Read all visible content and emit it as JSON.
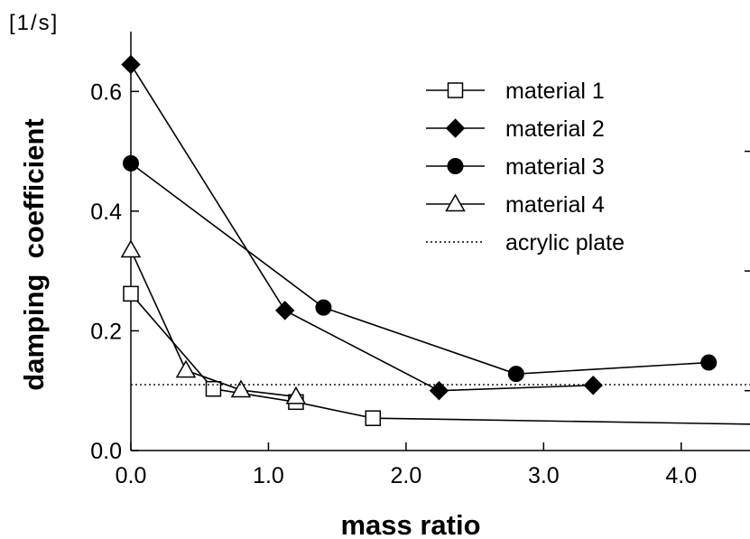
{
  "chart_data": {
    "type": "line",
    "title": "",
    "xlabel": "mass ratio",
    "ylabel": "damping  coefficient",
    "yunit": "[1/s]",
    "xlim": [
      0.0,
      4.5
    ],
    "ylim": [
      0.0,
      0.7
    ],
    "xticks": [
      0.0,
      1.0,
      2.0,
      3.0,
      4.0
    ],
    "xtick_labels": [
      "0.0",
      "1.0",
      "2.0",
      "3.0",
      "4.0"
    ],
    "yticks": [
      0.0,
      0.2,
      0.4,
      0.6
    ],
    "ytick_labels": [
      "0.0",
      "0.2",
      "0.4",
      "0.6"
    ],
    "grid": false,
    "legend_position": "top-right",
    "series": [
      {
        "name": "material 1",
        "marker": "open-square",
        "linestyle": "solid",
        "x": [
          0.0,
          0.6,
          1.2,
          1.76,
          4.5
        ],
        "y": [
          0.262,
          0.103,
          0.081,
          0.054,
          0.044
        ]
      },
      {
        "name": "material 2",
        "marker": "filled-diamond",
        "linestyle": "solid",
        "x": [
          0.0,
          1.12,
          2.24,
          3.36
        ],
        "y": [
          0.645,
          0.234,
          0.1,
          0.109
        ]
      },
      {
        "name": "material 3",
        "marker": "filled-circle",
        "linestyle": "solid",
        "x": [
          0.0,
          1.4,
          2.8,
          4.2
        ],
        "y": [
          0.48,
          0.239,
          0.128,
          0.147
        ]
      },
      {
        "name": "material 4",
        "marker": "open-triangle",
        "linestyle": "solid",
        "x": [
          0.0,
          0.4,
          0.8,
          1.2
        ],
        "y": [
          0.335,
          0.134,
          0.101,
          0.09
        ]
      },
      {
        "name": "acrylic plate",
        "marker": "none",
        "linestyle": "dotted",
        "x": [
          0.0,
          4.5
        ],
        "y": [
          0.11,
          0.11
        ]
      }
    ]
  }
}
